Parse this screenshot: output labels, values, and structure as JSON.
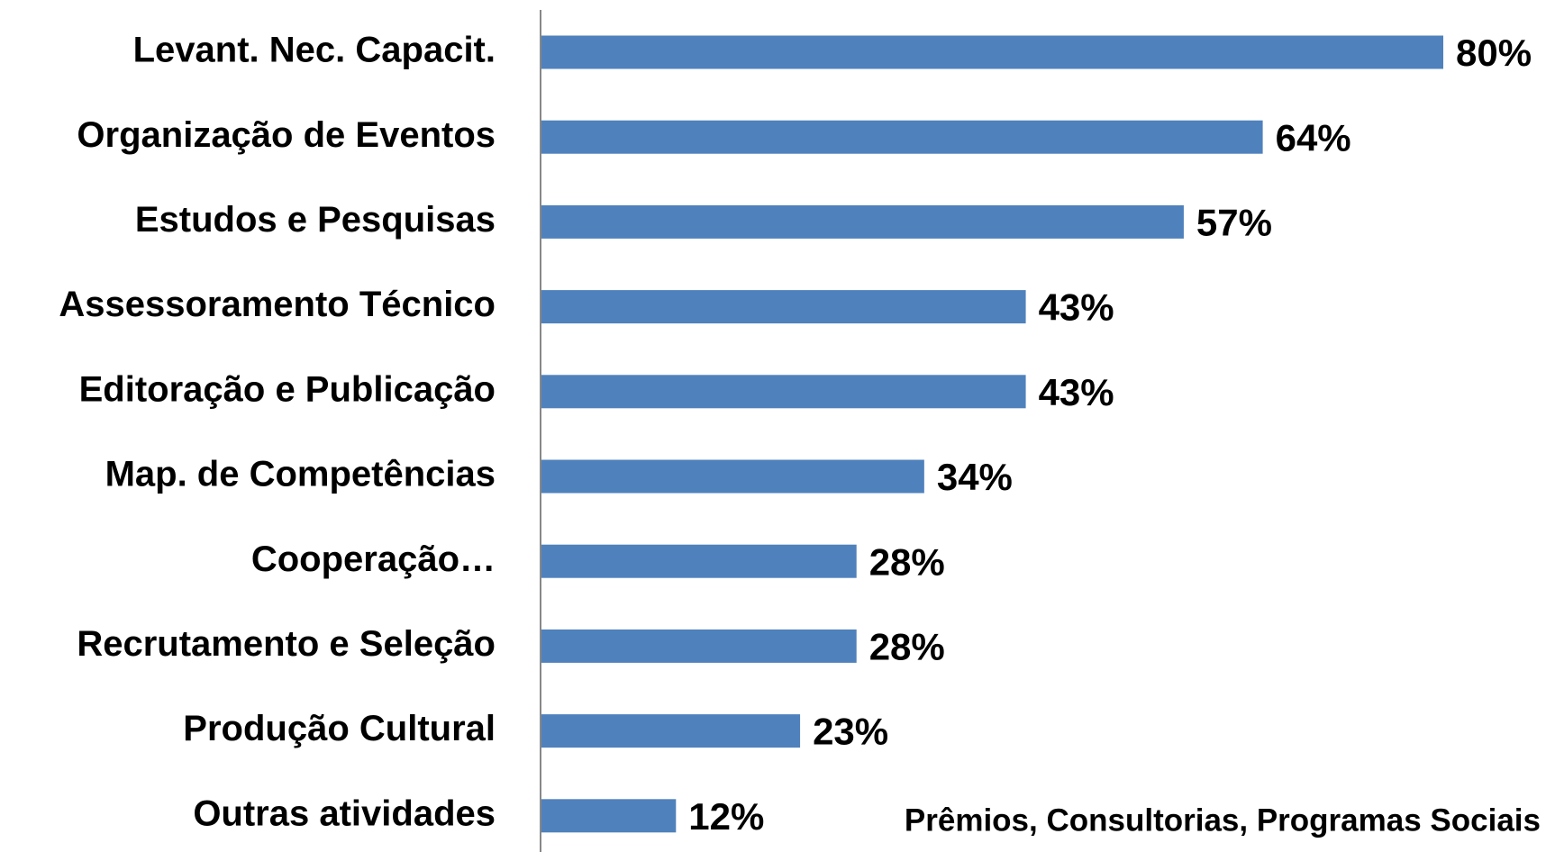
{
  "chart_data": {
    "type": "bar",
    "orientation": "horizontal",
    "categories": [
      "Levant. Nec. Capacit.",
      "Organização de Eventos",
      "Estudos e Pesquisas",
      "Assessoramento Técnico",
      "Editoração e Publicação",
      "Map. de Competências",
      "Cooperação…",
      "Recrutamento e Seleção",
      "Produção Cultural",
      "Outras atividades"
    ],
    "values": [
      80,
      64,
      57,
      43,
      43,
      34,
      28,
      28,
      23,
      12
    ],
    "value_labels": [
      "80%",
      "64%",
      "57%",
      "43%",
      "43%",
      "34%",
      "28%",
      "28%",
      "23%",
      "12%"
    ],
    "color": "#4f81bd",
    "xlim": [
      0,
      80
    ],
    "annotation": "Prêmios,  Consultorias, Programas Sociais"
  }
}
